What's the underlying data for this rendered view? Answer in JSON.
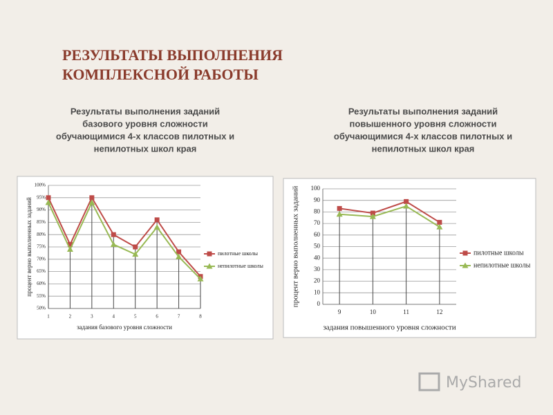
{
  "title": [
    "РЕЗУЛЬТАТЫ ВЫПОЛНЕНИЯ",
    "КОМПЛЕКСНОЙ РАБОТЫ"
  ],
  "watermark": "MyShared",
  "chart_data": [
    {
      "type": "line",
      "title": [
        "Результаты выполнения заданий",
        "базового уровня сложности",
        "обучающимися 4-х классов пилотных и",
        "непилотных школ края"
      ],
      "x_label": "задания базового уровня сложности",
      "y_label": "процент верно выполненных заданий",
      "categories": [
        "1",
        "2",
        "3",
        "4",
        "5",
        "6",
        "7",
        "8"
      ],
      "series": [
        {
          "name": "пилотные школы",
          "color": "#be4b48",
          "marker": "square",
          "values": [
            95,
            76,
            95,
            80,
            75,
            86,
            73,
            63
          ]
        },
        {
          "name": "непилотные школы",
          "color": "#98b954",
          "marker": "triangle",
          "values": [
            93,
            74,
            93,
            76,
            72,
            83,
            71,
            62
          ]
        }
      ],
      "ylim": [
        50,
        100
      ],
      "yticks": [
        {
          "value": 50,
          "label": "50%"
        },
        {
          "value": 55,
          "label": "55%"
        },
        {
          "value": 60,
          "label": "60%"
        },
        {
          "value": 65,
          "label": "65%"
        },
        {
          "value": 70,
          "label": "70%"
        },
        {
          "value": 75,
          "label": "75%"
        },
        {
          "value": 80,
          "label": "80%"
        },
        {
          "value": 85,
          "label": "85%"
        },
        {
          "value": 90,
          "label": "90%"
        },
        {
          "value": 95,
          "label": "95%"
        },
        {
          "value": 100,
          "label": "100%"
        }
      ],
      "grid": true,
      "drop_lines": true,
      "legend": "right"
    },
    {
      "type": "line",
      "title": [
        "Результаты выполнения заданий",
        "повышенного уровня сложности",
        "обучающимися 4-х классов пилотных и",
        "непилотных школ края"
      ],
      "x_label": "задания повышенного уровня сложности",
      "y_label": "процент верно выполненных заданий",
      "categories": [
        "9",
        "10",
        "11",
        "12"
      ],
      "series": [
        {
          "name": "пилотные школы",
          "color": "#be4b48",
          "marker": "square",
          "values": [
            83,
            79,
            89,
            71
          ]
        },
        {
          "name": "непилотные школы",
          "color": "#98b954",
          "marker": "triangle",
          "values": [
            78,
            76,
            85,
            67
          ]
        }
      ],
      "ylim": [
        0,
        100
      ],
      "yticks": [
        0,
        10,
        20,
        30,
        40,
        50,
        60,
        70,
        80,
        90,
        100
      ],
      "grid": true,
      "drop_lines": true,
      "legend": "right"
    }
  ]
}
